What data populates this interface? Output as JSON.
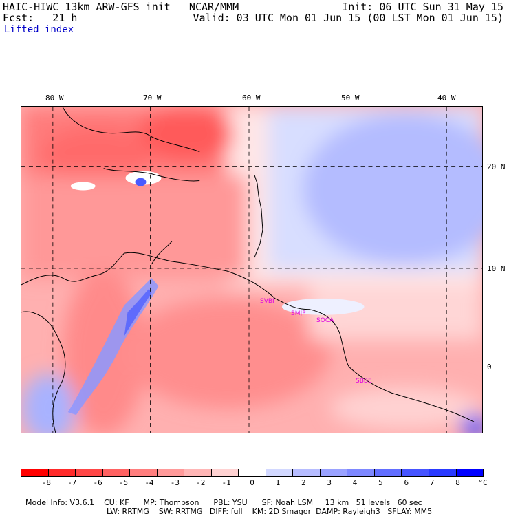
{
  "header": {
    "line1_left": "HAIC-HIWC 13km ARW-GFS init   NCAR/MMM",
    "line1_right": "Init: 06 UTC Sun 31 May 15",
    "line2_left": "Fcst:   21 h",
    "line2_right": "Valid: 03 UTC Mon 01 Jun 15 (00 LST Mon 01 Jun 15)",
    "field": "Lifted index"
  },
  "map": {
    "lon_labels": [
      "80 W",
      "70 W",
      "60 W",
      "50 W",
      "40 W"
    ],
    "lat_labels": [
      "20 N",
      "10 N",
      "0"
    ],
    "stations": [
      "SVBI",
      "SMJP",
      "SOCA",
      "SBBE"
    ]
  },
  "colorbar": {
    "ticks": [
      "-8",
      "-7",
      "-6",
      "-5",
      "-4",
      "-3",
      "-2",
      "-1",
      "0",
      "1",
      "2",
      "3",
      "4",
      "5",
      "6",
      "7",
      "8"
    ],
    "unit": "°C",
    "colors": [
      "#ff0000",
      "#ff2a2a",
      "#ff4646",
      "#ff6262",
      "#ff7e7e",
      "#ff9a9a",
      "#ffb6b6",
      "#ffd2d2",
      "#ffffff",
      "#d2d8ff",
      "#b6bcff",
      "#9aa2ff",
      "#7e88ff",
      "#626eff",
      "#4654ff",
      "#2a3aff",
      "#0000ff"
    ]
  },
  "footer": {
    "line1": [
      "Model Info: V3.6.1",
      "CU: KF",
      "MP: Thompson",
      "PBL: YSU",
      "SF: Noah LSM",
      "13 km",
      "51 levels",
      "60 sec"
    ],
    "line2": [
      "LW: RRTMG",
      "SW: RRTMG",
      "DIFF: full",
      "KM: 2D Smagor",
      "DAMP: Rayleigh3",
      "SFLAY: MM5"
    ]
  }
}
